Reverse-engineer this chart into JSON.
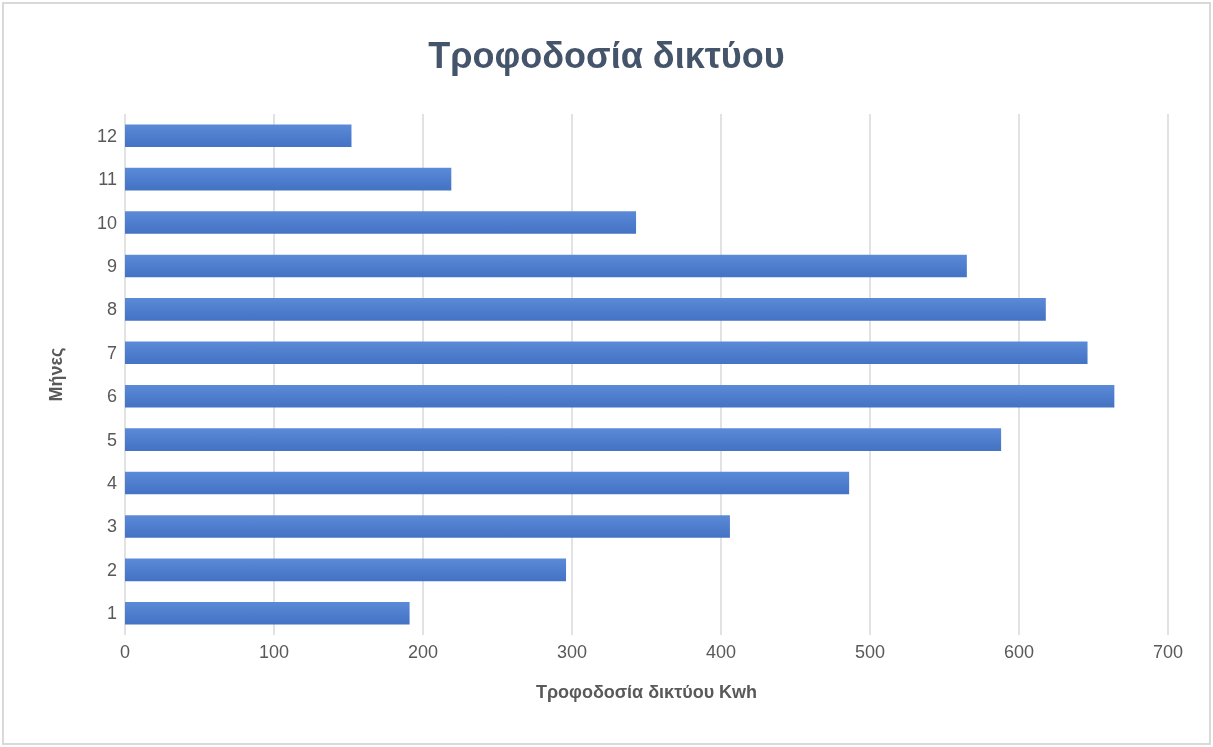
{
  "chart_data": {
    "type": "bar",
    "orientation": "horizontal",
    "title": "Τροφοδοσία δικτύου",
    "xlabel": "Τροφοδοσία δικτύου Kwh",
    "ylabel": "Μήνες",
    "categories": [
      "12",
      "11",
      "10",
      "9",
      "8",
      "7",
      "6",
      "5",
      "4",
      "3",
      "2",
      "1"
    ],
    "values": [
      152,
      219,
      343,
      565,
      618,
      646,
      664,
      588,
      486,
      406,
      296,
      191
    ],
    "color": "#4472c4",
    "xlim": [
      0,
      700
    ],
    "xticks": [
      0,
      100,
      200,
      300,
      400,
      500,
      600,
      700
    ],
    "grid": "x"
  }
}
